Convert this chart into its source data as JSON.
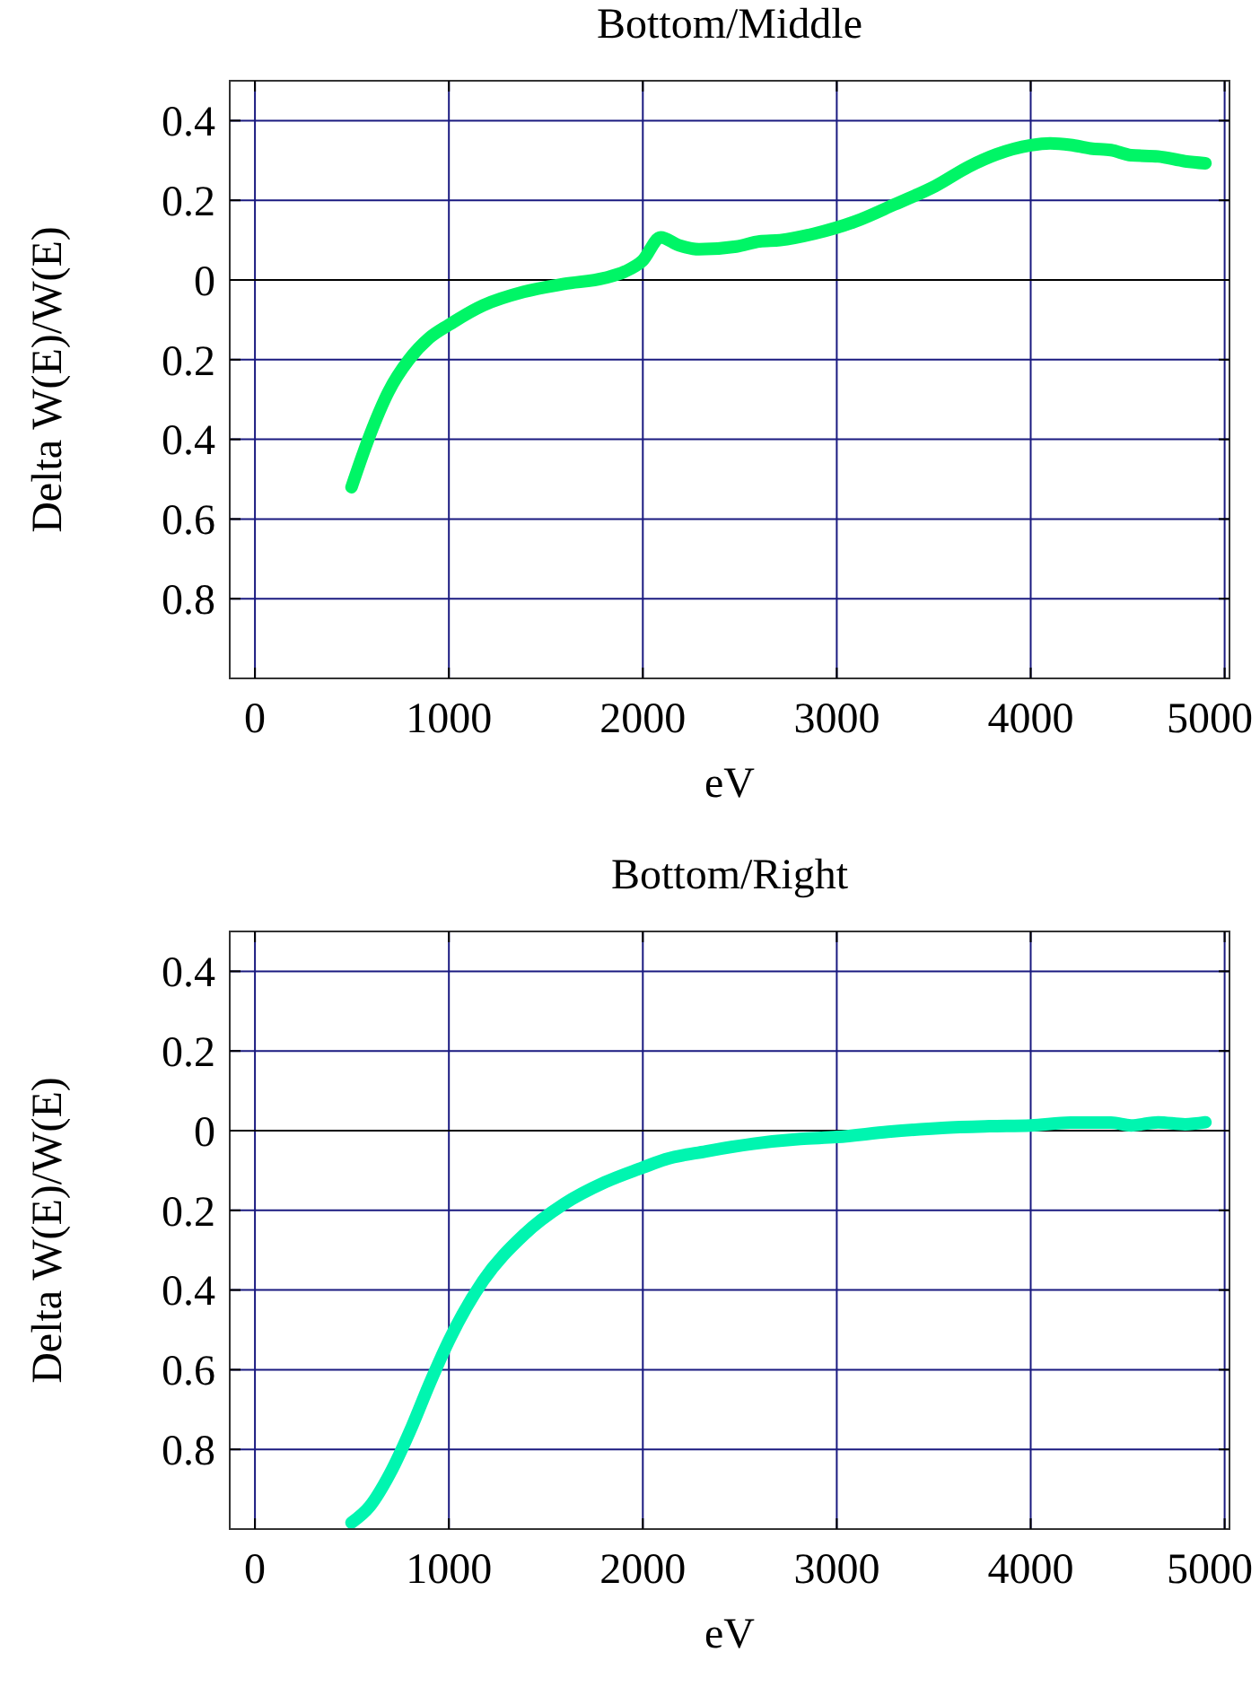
{
  "chart_data": [
    {
      "type": "line",
      "title": "Bottom/Middle",
      "xlabel": "eV",
      "ylabel": "Delta W(E)/W(E)",
      "series": [
        {
          "color": "#00f566",
          "x": [
            498,
            592,
            689,
            794,
            898,
            999,
            1176,
            1385,
            1594,
            1803,
            1907,
            1998,
            2092,
            2186,
            2290,
            2482,
            2603,
            2708,
            2882,
            3091,
            3300,
            3509,
            3683,
            3822,
            4000,
            4100,
            4205,
            4309,
            4414,
            4518,
            4657,
            4796,
            4901
          ],
          "values": [
            -0.52,
            -0.39,
            -0.28,
            -0.2,
            -0.146,
            -0.113,
            -0.064,
            -0.03,
            -0.01,
            0.005,
            0.021,
            0.048,
            0.107,
            0.087,
            0.077,
            0.084,
            0.097,
            0.1,
            0.116,
            0.146,
            0.19,
            0.236,
            0.285,
            0.315,
            0.338,
            0.343,
            0.339,
            0.33,
            0.326,
            0.313,
            0.31,
            0.298,
            0.293
          ]
        }
      ],
      "xlim": [
        -130,
        5025
      ],
      "xticks": [
        0,
        1000,
        2000,
        3000,
        4000,
        5000
      ],
      "ylim": [
        -1.0,
        0.5
      ],
      "yticks": [
        0.4,
        0.2,
        0,
        {
          "value": -0.2,
          "label": "0.2"
        },
        {
          "value": -0.4,
          "label": "0.4"
        },
        {
          "value": -0.6,
          "label": "0.6"
        },
        {
          "value": -0.8,
          "label": "0.8"
        }
      ],
      "grid": true,
      "ref_lines": [
        {
          "axis": "y",
          "value": 0,
          "color": "#000000"
        }
      ],
      "line_style": "solid"
    },
    {
      "type": "line",
      "title": "Bottom/Right",
      "xlabel": "eV",
      "ylabel": "Delta W(E)/W(E)",
      "series": [
        {
          "color": "#00f5b0",
          "x": [
            498,
            592,
            696,
            811,
            898,
            999,
            1176,
            1385,
            1594,
            1803,
            1998,
            2116,
            2325,
            2569,
            2812,
            3000,
            3265,
            3544,
            3787,
            4000,
            4205,
            4414,
            4518,
            4657,
            4796,
            4901
          ],
          "values": [
            -0.984,
            -0.943,
            -0.861,
            -0.741,
            -0.638,
            -0.528,
            -0.377,
            -0.262,
            -0.184,
            -0.13,
            -0.093,
            -0.072,
            -0.052,
            -0.033,
            -0.021,
            -0.016,
            -0.003,
            0.007,
            0.011,
            0.013,
            0.02,
            0.02,
            0.013,
            0.021,
            0.016,
            0.021
          ]
        }
      ],
      "xlim": [
        -130,
        5025
      ],
      "xticks": [
        0,
        1000,
        2000,
        3000,
        4000,
        5000
      ],
      "ylim": [
        -1.0,
        0.5
      ],
      "yticks": [
        0.4,
        0.2,
        0,
        {
          "value": -0.2,
          "label": "0.2"
        },
        {
          "value": -0.4,
          "label": "0.4"
        },
        {
          "value": -0.6,
          "label": "0.6"
        },
        {
          "value": -0.8,
          "label": "0.8"
        }
      ],
      "grid": true,
      "ref_lines": [
        {
          "axis": "y",
          "value": 0,
          "color": "#000000"
        }
      ],
      "line_style": "solid"
    }
  ]
}
